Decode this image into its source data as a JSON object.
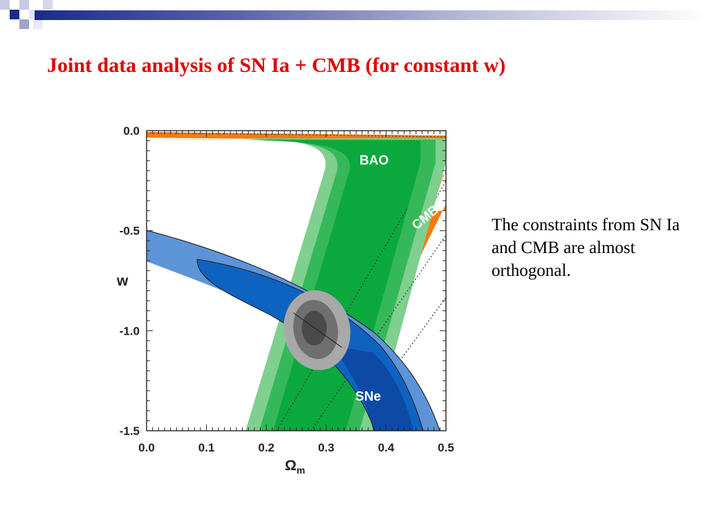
{
  "slide": {
    "title": "Joint data analysis of SN Ia + CMB (for constant w)",
    "side_text": "The constraints from SN Ia and CMB are almost orthogonal."
  },
  "colors": {
    "title": "#e00000",
    "band": "#1c2a8c",
    "bao": [
      "#0ba83e",
      "#35b85a",
      "#7fcf8f"
    ],
    "cmb": [
      "#f87a10",
      "#fbb37a"
    ],
    "sne": [
      "#0c4aa6",
      "#0e63c1",
      "#5d94d8"
    ],
    "joint": [
      "#4a4a4a",
      "#6f6f6f",
      "#a8a8a8"
    ]
  },
  "chart_data": {
    "type": "contour",
    "xlabel": "Ω",
    "xlabel_sub": "m",
    "ylabel": "w",
    "xlim": [
      0.0,
      0.5
    ],
    "ylim": [
      -1.5,
      0.0
    ],
    "x_ticks": [
      "0.0",
      "0.1",
      "0.2",
      "0.3",
      "0.4",
      "0.5"
    ],
    "x_tick_values": [
      0.0,
      0.1,
      0.2,
      0.3,
      0.4,
      0.5
    ],
    "y_ticks": [
      "0.0",
      "-0.5",
      "-1.0",
      "-1.5"
    ],
    "y_tick_values": [
      0.0,
      -0.5,
      -1.0,
      -1.5
    ],
    "series": [
      {
        "name": "BAO",
        "label_at": [
          0.38,
          -0.17
        ]
      },
      {
        "name": "CMB",
        "label_at": [
          0.47,
          -0.45
        ]
      },
      {
        "name": "SNe",
        "label_at": [
          0.37,
          -1.35
        ]
      }
    ],
    "joint_contour_center": [
      0.28,
      -0.98
    ]
  }
}
